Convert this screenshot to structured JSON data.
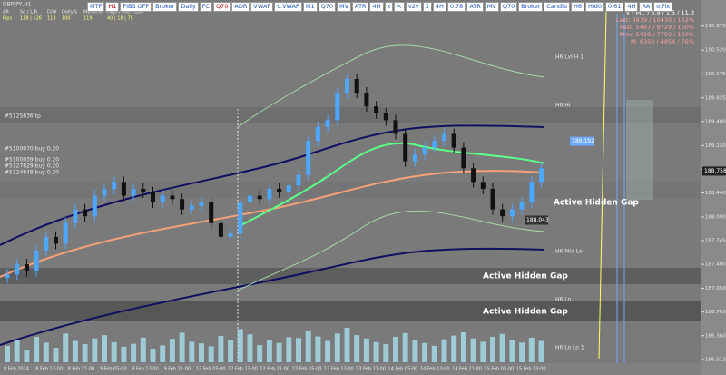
{
  "symbol": "GBPJPY,H1",
  "toolbar": [
    "MTF",
    "H1",
    "FIBS OFF",
    "Broker",
    "Daily",
    "FC",
    "Q70",
    "ADR",
    "VWAP",
    "c.VWAP",
    "M1",
    "Q70",
    "MV",
    "ATR",
    "4H",
    "x",
    "<",
    "v2v",
    "3",
    "4H",
    "0.78",
    "ATR",
    "MV",
    "Q70",
    "Broker",
    "Candle",
    "H6",
    "Hid0",
    "0.61",
    "4H",
    "RA",
    "o.Fix"
  ],
  "stats_header": [
    "AR",
    "Sd / L.R",
    "D/W",
    "Daily%",
    "Month%",
    "High / Mid / Low"
  ],
  "stats_values": [
    "Pips",
    "118 | 126",
    "113",
    "100",
    "119",
    "40 | 18 | 75"
  ],
  "info": [
    "V ( M1 ) 3.9 / 1.5 / 11.3",
    "Last: 6839 / 10430 / 162%",
    "Past: 5497 / 9729 / 150%",
    "Prev: 5419 / 7702 / 120%",
    "M: 6350 / 4854 / 76%"
  ],
  "chart_labels": [
    "H6 Lvl H 1",
    "H6 Hi",
    "H6 Mid Lo",
    "H6 Lo",
    "H6 Lo Lo 1",
    "#5125836 tp",
    "#5100070 buy 0.20",
    "#5100039 buy 0.20",
    "#5127829 buy 0.20",
    "#5124848 buy 0.20"
  ],
  "price_boxes": [
    {
      "value": 189.192,
      "label": "189.192"
    },
    {
      "value": 188.043,
      "label": "188.043"
    },
    {
      "value": 188.758,
      "label": "188.758"
    }
  ],
  "annotations": [
    "Active Hidden Gap",
    "Active Hidden Gap",
    "Active Hidden Gap"
  ],
  "chart_data": {
    "type": "candlestick",
    "ylim": [
      185.96,
      191.25
    ],
    "yticks": [
      {
        "value": 190.87,
        "label": "190.870"
      },
      {
        "value": 190.52,
        "label": "190.520"
      },
      190.175,
      189.825,
      {
        "value": 189.48,
        "label": "189.480"
      },
      {
        "value": 189.13,
        "label": "189.130"
      },
      188.785,
      {
        "value": 188.44,
        "label": "188.440"
      },
      {
        "value": 188.09,
        "label": "188.090"
      },
      187.745,
      {
        "value": 187.4,
        "label": "187.400"
      },
      {
        "value": 187.05,
        "label": "187.050"
      },
      186.705,
      {
        "value": 186.36,
        "label": "186.360"
      },
      186.013
    ],
    "grid": false,
    "time_labels": [
      "8 Feb 2024",
      "8 Feb 13:00",
      "8 Feb 21:00",
      "9 Feb 05:00",
      "9 Feb 13:00",
      "9 Feb 21:00",
      "12 Feb 05:00",
      "12 Feb 13:00",
      "12 Feb 21:00",
      "13 Feb 05:00",
      "13 Feb 13:00",
      "13 Feb 21:00",
      "14 Feb 05:00",
      "14 Feb 13:00",
      "14 Feb 21:00",
      "15 Feb 05:00",
      "15 Feb 13:00"
    ],
    "up_color": "#4da6ff",
    "down_color": "#111111",
    "volume_color": "#a8e0ee",
    "open": [
      187.2,
      187.25,
      187.4,
      187.3,
      187.6,
      187.8,
      187.7,
      188.0,
      188.2,
      188.1,
      188.4,
      188.5,
      188.6,
      188.4,
      188.5,
      188.45,
      188.3,
      188.4,
      188.35,
      188.2,
      188.25,
      188.3,
      188.0,
      187.8,
      187.85,
      188.3,
      188.4,
      188.35,
      188.5,
      188.45,
      188.55,
      188.7,
      189.2,
      189.4,
      189.5,
      189.9,
      190.1,
      189.9,
      189.7,
      189.6,
      189.5,
      189.3,
      188.9,
      189.0,
      189.1,
      189.2,
      189.3,
      189.1,
      188.8,
      188.6,
      188.5,
      188.2,
      188.1,
      188.2,
      188.3,
      188.6
    ],
    "high": [
      187.33,
      187.48,
      187.48,
      187.68,
      187.88,
      187.88,
      188.08,
      188.28,
      188.28,
      188.48,
      188.58,
      188.68,
      188.68,
      188.58,
      188.58,
      188.53,
      188.48,
      188.48,
      188.43,
      188.33,
      188.38,
      188.38,
      188.08,
      187.93,
      188.38,
      188.48,
      188.48,
      188.58,
      188.58,
      188.63,
      188.78,
      189.28,
      189.48,
      189.58,
      189.98,
      190.18,
      190.18,
      189.98,
      189.78,
      189.68,
      189.58,
      189.38,
      189.08,
      189.18,
      189.28,
      189.38,
      189.38,
      189.18,
      188.88,
      188.68,
      188.58,
      188.28,
      188.28,
      188.38,
      188.68,
      188.88
    ],
    "low": [
      187.12,
      187.17,
      187.22,
      187.22,
      187.52,
      187.62,
      187.62,
      187.92,
      188.02,
      188.02,
      188.32,
      188.42,
      188.32,
      188.32,
      188.37,
      188.22,
      188.22,
      188.27,
      188.12,
      188.12,
      188.17,
      187.92,
      187.72,
      187.72,
      187.77,
      188.22,
      188.27,
      188.27,
      188.37,
      188.37,
      188.47,
      188.62,
      189.12,
      189.32,
      189.42,
      189.82,
      189.82,
      189.62,
      189.52,
      189.42,
      189.22,
      188.82,
      188.82,
      188.92,
      189.02,
      189.12,
      189.02,
      188.72,
      188.52,
      188.42,
      188.12,
      188.02,
      188.02,
      188.12,
      188.22,
      188.52
    ],
    "close": [
      187.25,
      187.4,
      187.3,
      187.6,
      187.8,
      187.7,
      188.0,
      188.2,
      188.1,
      188.4,
      188.5,
      188.6,
      188.4,
      188.5,
      188.45,
      188.3,
      188.4,
      188.35,
      188.2,
      188.25,
      188.3,
      188.0,
      187.8,
      187.85,
      188.3,
      188.4,
      188.35,
      188.5,
      188.45,
      188.55,
      188.7,
      189.2,
      189.4,
      189.5,
      189.9,
      190.1,
      189.9,
      189.7,
      189.6,
      189.5,
      189.3,
      188.9,
      189.0,
      189.1,
      189.2,
      189.3,
      189.1,
      188.8,
      188.6,
      188.5,
      188.2,
      188.1,
      188.2,
      188.3,
      188.6,
      188.8
    ],
    "volume": [
      40,
      55,
      30,
      62,
      48,
      35,
      70,
      52,
      44,
      58,
      66,
      49,
      38,
      45,
      60,
      33,
      41,
      57,
      72,
      50,
      46,
      39,
      64,
      53,
      81,
      68,
      42,
      55,
      47,
      61,
      59,
      77,
      63,
      52,
      70,
      84,
      66,
      58,
      49,
      44,
      62,
      71,
      53,
      47,
      40,
      56,
      65,
      73,
      58,
      50,
      62,
      69,
      55,
      48,
      60,
      52
    ]
  }
}
